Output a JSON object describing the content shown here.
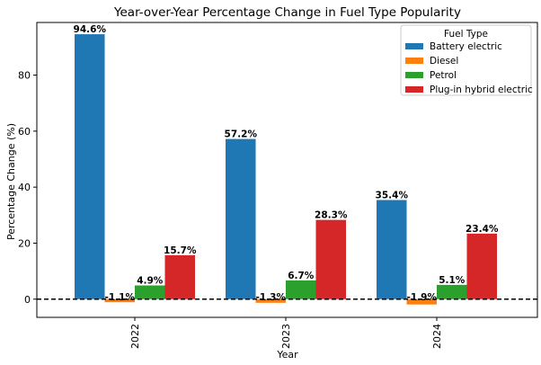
{
  "chart_data": {
    "type": "bar",
    "title": "Year-over-Year Percentage Change in Fuel Type Popularity",
    "xlabel": "Year",
    "ylabel": "Percentage Change (%)",
    "categories": [
      "2022",
      "2023",
      "2024"
    ],
    "ylim": [
      -6.5,
      98.8
    ],
    "yticks": [
      0,
      20,
      40,
      60,
      80
    ],
    "grid": false,
    "reference_line": {
      "y": 0,
      "style": "dashed",
      "color": "#000000"
    },
    "legend": {
      "title": "Fuel Type",
      "placement": "top-right"
    },
    "series": [
      {
        "name": "Battery electric",
        "color": "#1f77b4",
        "values": [
          94.6,
          57.2,
          35.4
        ],
        "labels": [
          "94.6%",
          "57.2%",
          "35.4%"
        ]
      },
      {
        "name": "Diesel",
        "color": "#ff7f0e",
        "values": [
          -1.1,
          -1.3,
          -1.9
        ],
        "labels": [
          "-1.1%",
          "-1.3%",
          "-1.9%"
        ]
      },
      {
        "name": "Petrol",
        "color": "#2ca02c",
        "values": [
          4.9,
          6.7,
          5.1
        ],
        "labels": [
          "4.9%",
          "6.7%",
          "5.1%"
        ]
      },
      {
        "name": "Plug-in hybrid electric",
        "color": "#d62728",
        "values": [
          15.7,
          28.3,
          23.4
        ],
        "labels": [
          "15.7%",
          "28.3%",
          "23.4%"
        ]
      }
    ]
  }
}
